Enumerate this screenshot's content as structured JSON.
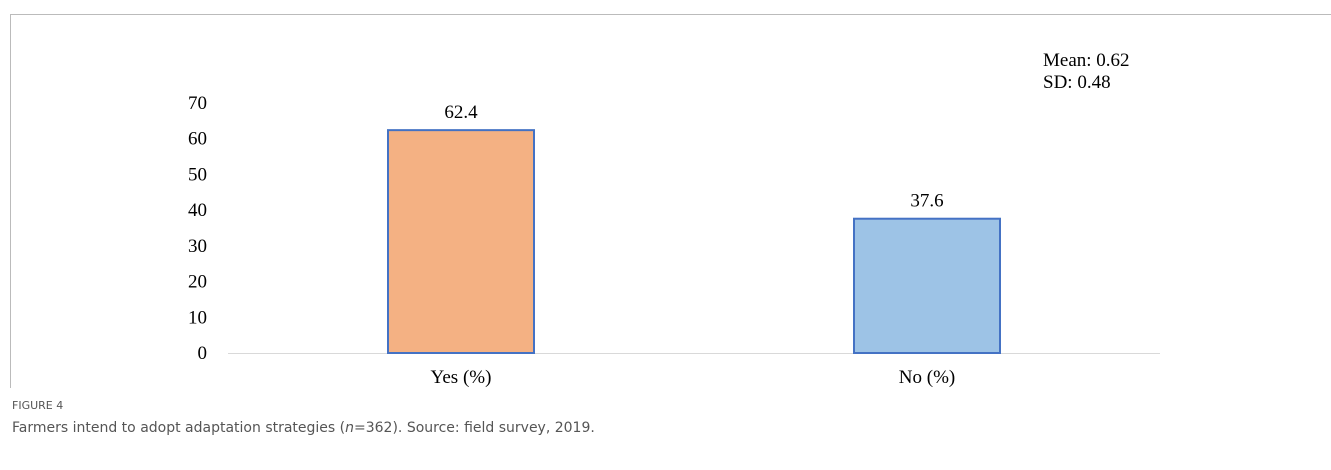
{
  "chart_data": {
    "type": "bar",
    "categories": [
      "Yes (%)",
      "No (%)"
    ],
    "values": [
      62.4,
      37.6
    ],
    "colors": [
      "#f4b183",
      "#9dc3e6"
    ],
    "edge_color": "#4472c4",
    "annotations": [
      "Mean: 0.62",
      "SD: 0.48"
    ],
    "ylim": [
      0,
      70
    ],
    "yticks": [
      0,
      10,
      20,
      30,
      40,
      50,
      60,
      70
    ],
    "grid": false
  },
  "caption": {
    "label": "FIGURE 4",
    "text": [
      "Farmers intend to adopt adaptation strategies (",
      "n",
      "=362). Source: field survey, 2019."
    ]
  }
}
